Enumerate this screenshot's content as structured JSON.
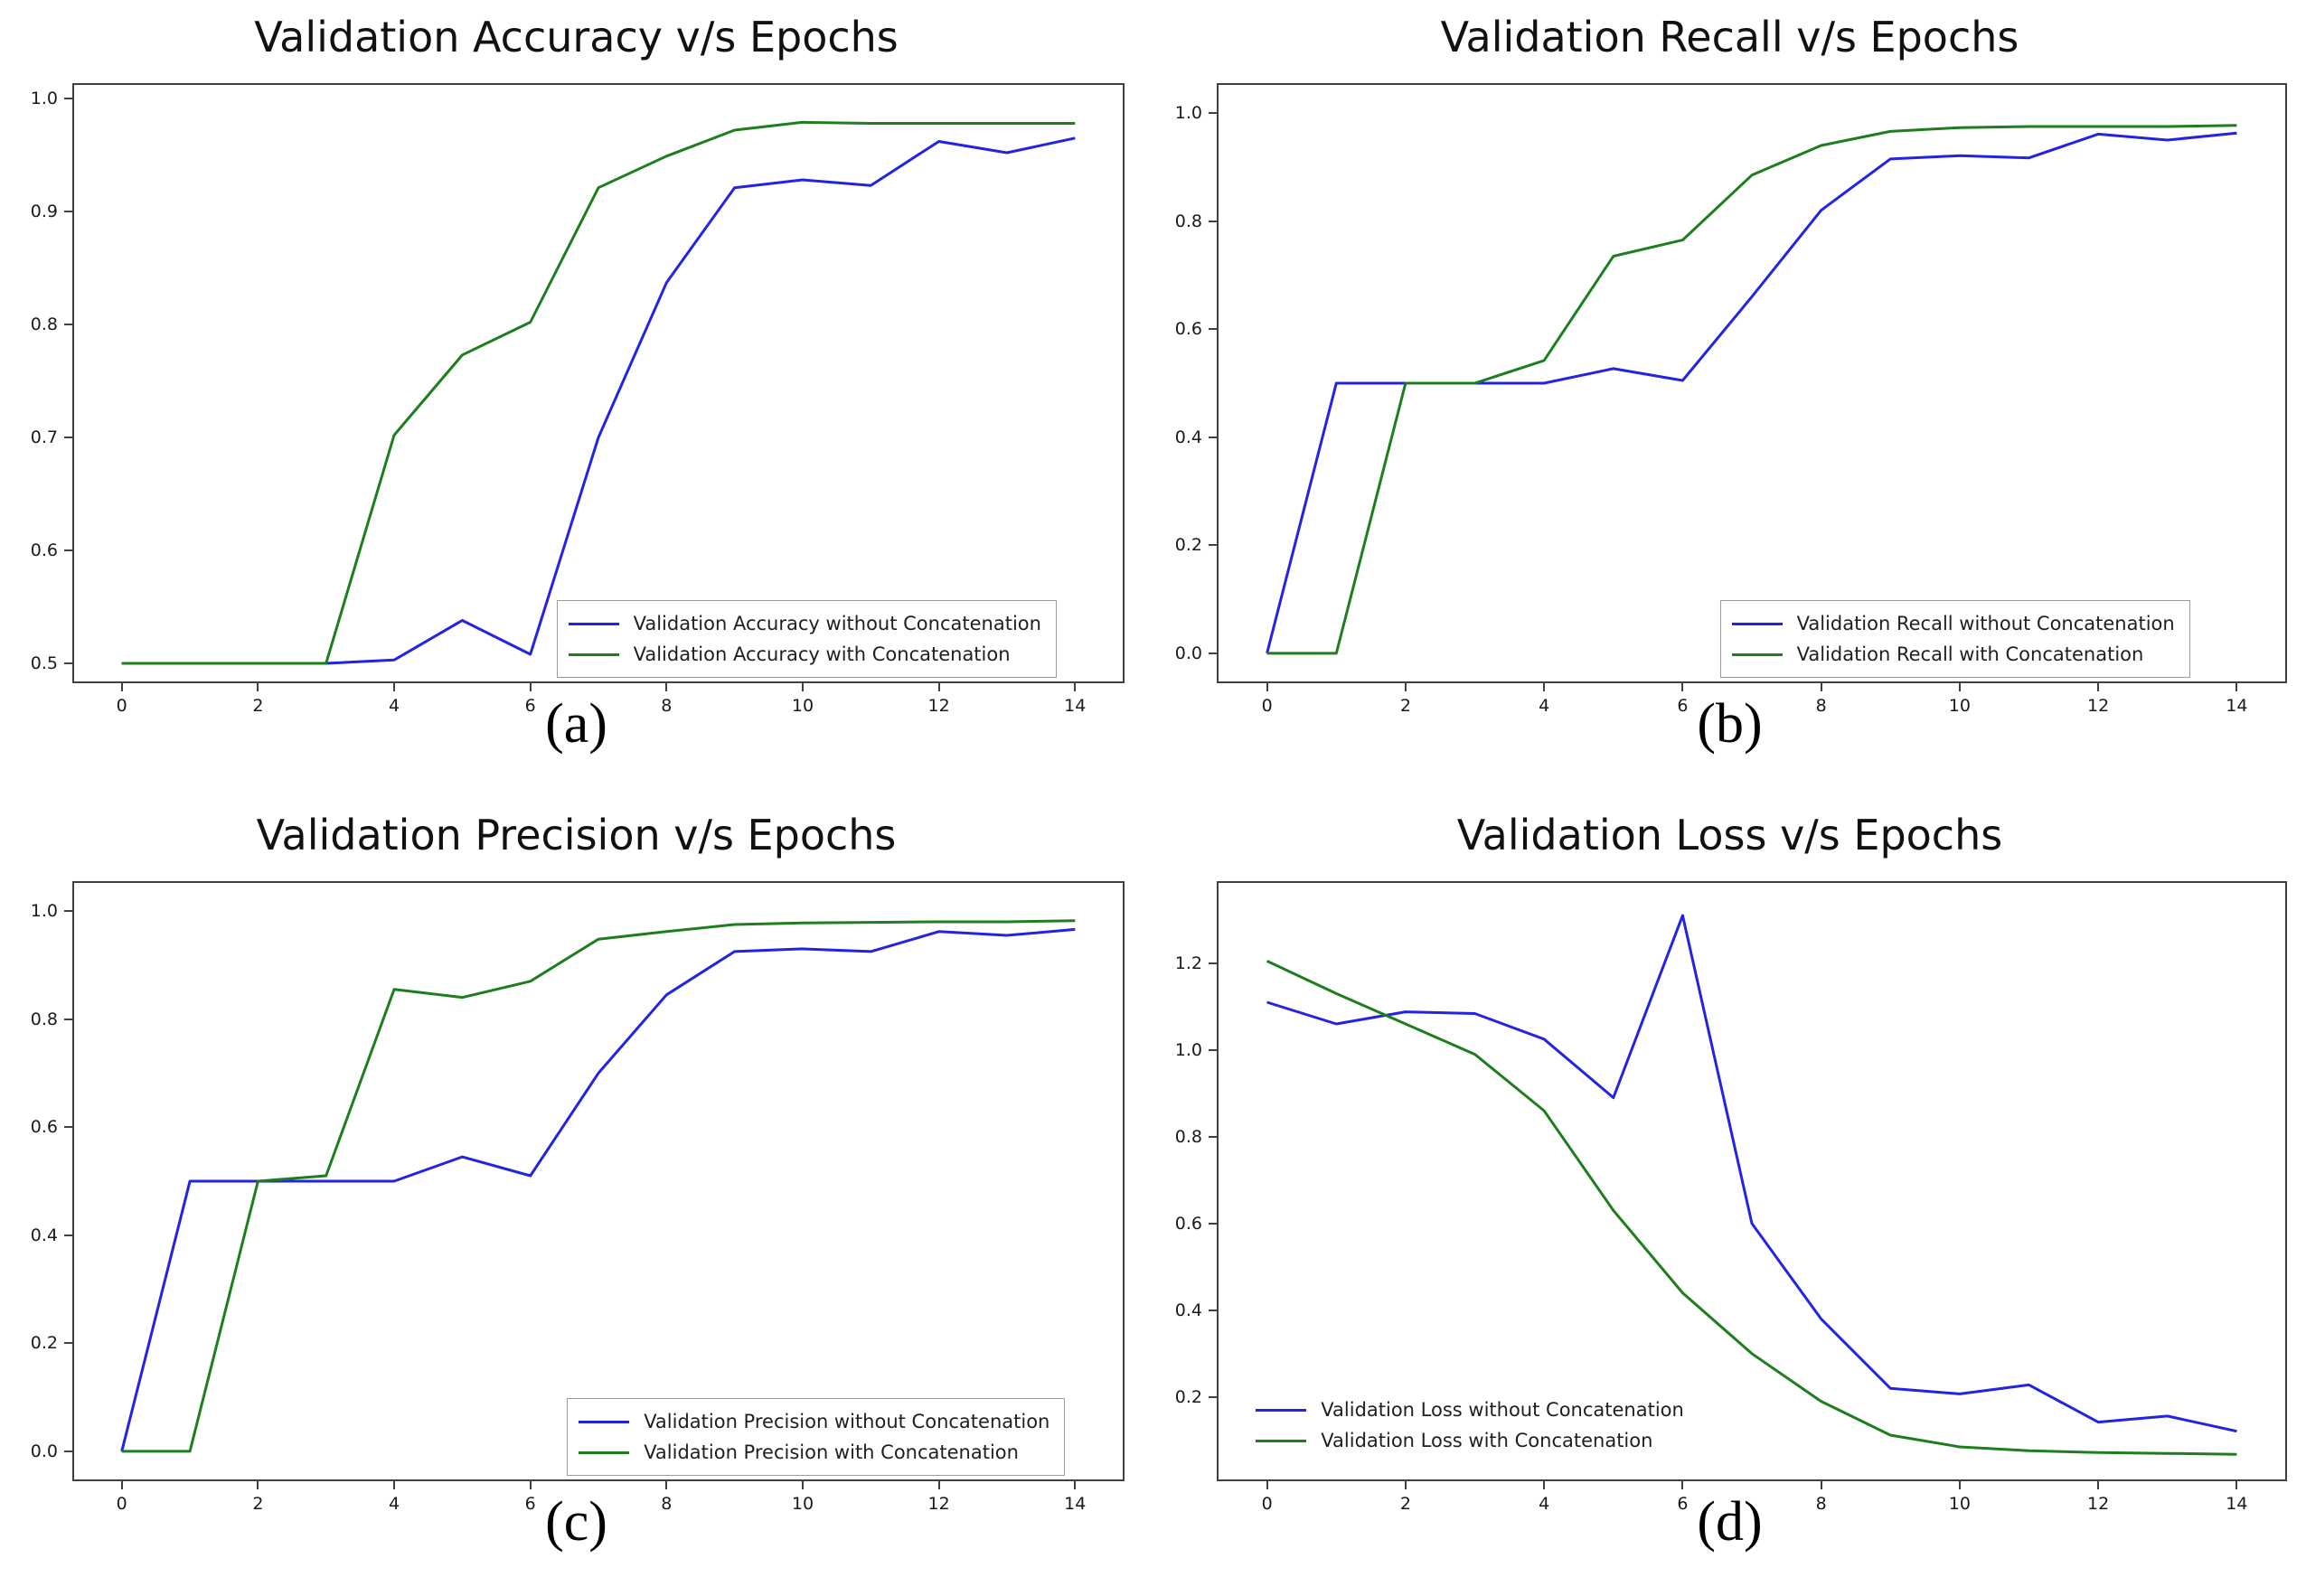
{
  "figure": {
    "background": "#ffffff",
    "accent_colors": {
      "without": "#2323e6",
      "with": "#1e7e1e",
      "spine": "#3f3f3f"
    }
  },
  "chart_data": [
    {
      "type": "line",
      "id": "a",
      "title": "Validation Accuracy v/s Epochs",
      "caption": "(a)",
      "x": [
        0,
        1,
        2,
        3,
        4,
        5,
        6,
        7,
        8,
        9,
        10,
        11,
        12,
        13,
        14
      ],
      "x_tick_labels": [
        "0",
        "2",
        "4",
        "6",
        "8",
        "10",
        "12",
        "14"
      ],
      "x_ticks": [
        0,
        2,
        4,
        6,
        8,
        10,
        12,
        14
      ],
      "y_tick_labels": [
        "0.5",
        "0.6",
        "0.7",
        "0.8",
        "0.9",
        "1.0"
      ],
      "y_ticks": [
        0.5,
        0.6,
        0.7,
        0.8,
        0.9,
        1.0
      ],
      "xlim": [
        -0.7,
        14.7
      ],
      "ylim": [
        0.484,
        1.012
      ],
      "grid": false,
      "legend_position": "lower right",
      "series": [
        {
          "name": "Validation Accuracy without Concatenation",
          "color_key": "without",
          "values": [
            0.5,
            0.5,
            0.5,
            0.5,
            0.503,
            0.538,
            0.508,
            0.7,
            0.837,
            0.921,
            0.928,
            0.923,
            0.962,
            0.952,
            0.965
          ]
        },
        {
          "name": "Validation Accuracy with Concatenation",
          "color_key": "with",
          "values": [
            0.5,
            0.5,
            0.5,
            0.5,
            0.702,
            0.773,
            0.802,
            0.921,
            0.949,
            0.972,
            0.979,
            0.978,
            0.978,
            0.978,
            0.978
          ]
        }
      ]
    },
    {
      "type": "line",
      "id": "b",
      "title": "Validation Recall v/s Epochs",
      "caption": "(b)",
      "x": [
        0,
        1,
        2,
        3,
        4,
        5,
        6,
        7,
        8,
        9,
        10,
        11,
        12,
        13,
        14
      ],
      "x_tick_labels": [
        "0",
        "2",
        "4",
        "6",
        "8",
        "10",
        "12",
        "14"
      ],
      "x_ticks": [
        0,
        2,
        4,
        6,
        8,
        10,
        12,
        14
      ],
      "y_tick_labels": [
        "0.0",
        "0.2",
        "0.4",
        "0.6",
        "0.8",
        "1.0"
      ],
      "y_ticks": [
        0.0,
        0.2,
        0.4,
        0.6,
        0.8,
        1.0
      ],
      "xlim": [
        -0.7,
        14.7
      ],
      "ylim": [
        -0.052,
        1.052
      ],
      "grid": false,
      "legend_position": "lower right",
      "series": [
        {
          "name": "Validation Recall without Concatenation",
          "color_key": "without",
          "values": [
            0.0,
            0.5,
            0.5,
            0.5,
            0.5,
            0.527,
            0.505,
            0.66,
            0.82,
            0.915,
            0.921,
            0.917,
            0.961,
            0.95,
            0.963
          ]
        },
        {
          "name": "Validation Recall with Concatenation",
          "color_key": "with",
          "values": [
            0.0,
            0.0,
            0.5,
            0.5,
            0.542,
            0.735,
            0.765,
            0.885,
            0.94,
            0.966,
            0.973,
            0.975,
            0.975,
            0.975,
            0.977
          ]
        }
      ]
    },
    {
      "type": "line",
      "id": "c",
      "title": "Validation Precision v/s Epochs",
      "caption": "(c)",
      "x": [
        0,
        1,
        2,
        3,
        4,
        5,
        6,
        7,
        8,
        9,
        10,
        11,
        12,
        13,
        14
      ],
      "x_tick_labels": [
        "0",
        "2",
        "4",
        "6",
        "8",
        "10",
        "12",
        "14"
      ],
      "x_ticks": [
        0,
        2,
        4,
        6,
        8,
        10,
        12,
        14
      ],
      "y_tick_labels": [
        "0.0",
        "0.2",
        "0.4",
        "0.6",
        "0.8",
        "1.0"
      ],
      "y_ticks": [
        0.0,
        0.2,
        0.4,
        0.6,
        0.8,
        1.0
      ],
      "xlim": [
        -0.7,
        14.7
      ],
      "ylim": [
        -0.052,
        1.052
      ],
      "grid": false,
      "legend_position": "lower right",
      "series": [
        {
          "name": "Validation Precision without Concatenation",
          "color_key": "without",
          "values": [
            0.0,
            0.5,
            0.5,
            0.5,
            0.5,
            0.545,
            0.51,
            0.7,
            0.845,
            0.925,
            0.93,
            0.925,
            0.962,
            0.955,
            0.966
          ]
        },
        {
          "name": "Validation Precision with Concatenation",
          "color_key": "with",
          "values": [
            0.0,
            0.0,
            0.5,
            0.51,
            0.855,
            0.84,
            0.87,
            0.948,
            0.962,
            0.975,
            0.978,
            0.979,
            0.98,
            0.98,
            0.982
          ]
        }
      ]
    },
    {
      "type": "line",
      "id": "d",
      "title": "Validation Loss v/s Epochs",
      "caption": "(d)",
      "x": [
        0,
        1,
        2,
        3,
        4,
        5,
        6,
        7,
        8,
        9,
        10,
        11,
        12,
        13,
        14
      ],
      "x_tick_labels": [
        "0",
        "2",
        "4",
        "6",
        "8",
        "10",
        "12",
        "14"
      ],
      "x_ticks": [
        0,
        2,
        4,
        6,
        8,
        10,
        12,
        14
      ],
      "y_tick_labels": [
        "0.2",
        "0.4",
        "0.6",
        "0.8",
        "1.0",
        "1.2"
      ],
      "y_ticks": [
        0.2,
        0.4,
        0.6,
        0.8,
        1.0,
        1.2
      ],
      "xlim": [
        -0.7,
        14.7
      ],
      "ylim": [
        0.01,
        1.385
      ],
      "grid": false,
      "legend_position": "lower left",
      "series": [
        {
          "name": "Validation Loss without Concatenation",
          "color_key": "without",
          "values": [
            1.11,
            1.06,
            1.088,
            1.084,
            1.025,
            0.89,
            1.31,
            0.6,
            0.38,
            0.22,
            0.207,
            0.228,
            0.142,
            0.156,
            0.121
          ]
        },
        {
          "name": "Validation Loss with Concatenation",
          "color_key": "with",
          "values": [
            1.205,
            1.13,
            1.06,
            0.99,
            0.86,
            0.63,
            0.44,
            0.3,
            0.19,
            0.112,
            0.085,
            0.076,
            0.072,
            0.07,
            0.068
          ]
        }
      ]
    }
  ]
}
